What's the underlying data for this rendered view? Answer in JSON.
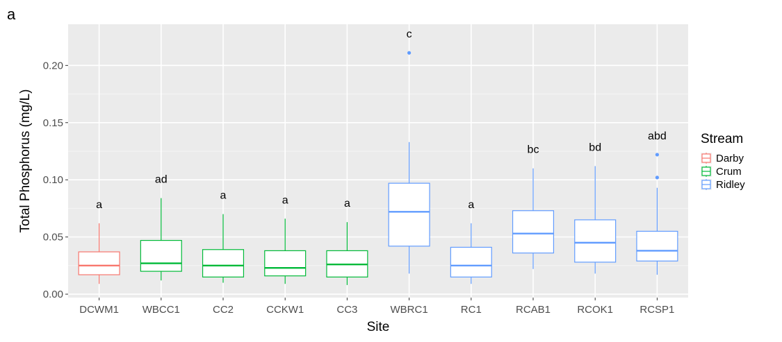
{
  "panel_label": "a",
  "chart_data": {
    "type": "boxplot",
    "xlabel": "Site",
    "ylabel": "Total Phosphorus (mg/L)",
    "ylim": [
      -0.003,
      0.236
    ],
    "yticks": [
      0.0,
      0.05,
      0.1,
      0.15,
      0.2
    ],
    "ytick_labels": [
      "0.00",
      "0.05",
      "0.10",
      "0.15",
      "0.20"
    ],
    "grid": true,
    "legend": {
      "title": "Stream",
      "placement": "right",
      "entries": [
        {
          "name": "Darby",
          "color": "#F8766D"
        },
        {
          "name": "Crum",
          "color": "#00BA38"
        },
        {
          "name": "Ridley",
          "color": "#619CFF"
        }
      ]
    },
    "boxes": [
      {
        "site": "DCWM1",
        "stream": "Darby",
        "min": 0.009,
        "q1": 0.017,
        "median": 0.025,
        "q3": 0.037,
        "max": 0.062,
        "outliers": [],
        "sig": "a"
      },
      {
        "site": "WBCC1",
        "stream": "Crum",
        "min": 0.012,
        "q1": 0.02,
        "median": 0.027,
        "q3": 0.047,
        "max": 0.084,
        "outliers": [],
        "sig": "ad"
      },
      {
        "site": "CC2",
        "stream": "Crum",
        "min": 0.01,
        "q1": 0.015,
        "median": 0.025,
        "q3": 0.039,
        "max": 0.07,
        "outliers": [],
        "sig": "a"
      },
      {
        "site": "CCKW1",
        "stream": "Crum",
        "min": 0.009,
        "q1": 0.016,
        "median": 0.023,
        "q3": 0.038,
        "max": 0.066,
        "outliers": [],
        "sig": "a"
      },
      {
        "site": "CC3",
        "stream": "Crum",
        "min": 0.008,
        "q1": 0.015,
        "median": 0.026,
        "q3": 0.038,
        "max": 0.063,
        "outliers": [],
        "sig": "a"
      },
      {
        "site": "WBRC1",
        "stream": "Ridley",
        "min": 0.018,
        "q1": 0.042,
        "median": 0.072,
        "q3": 0.097,
        "max": 0.133,
        "outliers": [
          0.211
        ],
        "sig": "c"
      },
      {
        "site": "RC1",
        "stream": "Ridley",
        "min": 0.009,
        "q1": 0.015,
        "median": 0.025,
        "q3": 0.041,
        "max": 0.062,
        "outliers": [],
        "sig": "a"
      },
      {
        "site": "RCAB1",
        "stream": "Ridley",
        "min": 0.022,
        "q1": 0.036,
        "median": 0.053,
        "q3": 0.073,
        "max": 0.11,
        "outliers": [],
        "sig": "bc"
      },
      {
        "site": "RCOK1",
        "stream": "Ridley",
        "min": 0.018,
        "q1": 0.028,
        "median": 0.045,
        "q3": 0.065,
        "max": 0.112,
        "outliers": [],
        "sig": "bd"
      },
      {
        "site": "RCSP1",
        "stream": "Ridley",
        "min": 0.017,
        "q1": 0.029,
        "median": 0.038,
        "q3": 0.055,
        "max": 0.093,
        "outliers": [
          0.102,
          0.122
        ],
        "sig": "abd"
      }
    ]
  }
}
